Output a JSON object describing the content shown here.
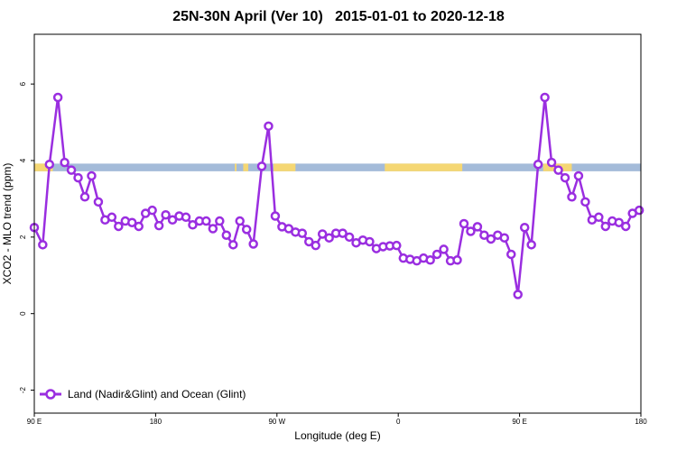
{
  "chart_data": {
    "type": "line",
    "title": "25N-30N April (Ver 10)   2015-01-01 to 2020-12-18",
    "xlabel": "Longitude (deg E)",
    "ylabel": "XCO2 - MLO trend (ppm)",
    "xlim": [
      90,
      450
    ],
    "ylim": [
      -2.6,
      7.3
    ],
    "x_ticks": [
      {
        "value": 90,
        "label": "90 E"
      },
      {
        "value": 162,
        "label": "180"
      },
      {
        "value": 234,
        "label": "90 W"
      },
      {
        "value": 306,
        "label": "0"
      },
      {
        "value": 378,
        "label": "90 E"
      },
      {
        "value": 450,
        "label": "180"
      }
    ],
    "y_ticks": [
      -2,
      0,
      2,
      4,
      6
    ],
    "legend_position": "bottom-left",
    "line_color": "#9a2ee0",
    "land_ocean_strip": {
      "y_range": [
        3.72,
        3.92
      ],
      "ocean_color": "#a4bbd9",
      "land_color": "#f5d774",
      "land_x": [
        [
          90,
          101
        ],
        [
          209,
          210
        ],
        [
          214,
          217
        ],
        [
          232,
          245
        ],
        [
          298,
          344
        ],
        [
          392,
          409
        ]
      ]
    },
    "series": [
      {
        "name": "Land (Nadir&Glint) and Ocean (Glint)",
        "x": [
          90,
          95,
          99,
          104,
          108,
          112,
          116,
          120,
          124,
          128,
          132,
          136,
          140,
          144,
          148,
          152,
          156,
          160,
          164,
          168,
          172,
          176,
          180,
          184,
          188,
          192,
          196,
          200,
          204,
          208,
          212,
          216,
          220,
          225,
          229,
          233,
          237,
          241,
          245,
          249,
          253,
          257,
          261,
          265,
          269,
          273,
          277,
          281,
          285,
          289,
          293,
          297,
          301,
          305,
          309,
          313,
          317,
          321,
          325,
          329,
          333,
          337,
          341,
          345,
          349,
          353,
          357,
          361,
          365,
          369,
          373,
          377,
          381,
          385,
          389,
          393,
          397,
          401,
          405,
          409,
          413,
          417,
          421,
          425,
          429,
          433,
          437,
          441,
          445,
          449
        ],
        "values": [
          2.25,
          1.8,
          3.9,
          5.65,
          3.95,
          3.75,
          3.55,
          3.05,
          3.6,
          2.92,
          2.45,
          2.52,
          2.28,
          2.42,
          2.38,
          2.28,
          2.62,
          2.7,
          2.3,
          2.58,
          2.45,
          2.55,
          2.52,
          2.32,
          2.42,
          2.42,
          2.22,
          2.42,
          2.05,
          1.8,
          2.42,
          2.2,
          1.82,
          3.85,
          4.9,
          2.55,
          2.27,
          2.22,
          2.13,
          2.1,
          1.88,
          1.78,
          2.08,
          1.98,
          2.1,
          2.1,
          2.0,
          1.85,
          1.92,
          1.88,
          1.7,
          1.75,
          1.77,
          1.78,
          1.45,
          1.42,
          1.38,
          1.45,
          1.4,
          1.55,
          1.68,
          1.38,
          1.4,
          2.35,
          2.15,
          2.27,
          2.05,
          1.95,
          2.05,
          1.98,
          1.55,
          0.5,
          2.25,
          1.8,
          3.9,
          5.65,
          3.95,
          3.75,
          3.55,
          3.05,
          3.6,
          2.92,
          2.45,
          2.52,
          2.28,
          2.42,
          2.38,
          2.28,
          2.62,
          2.7
        ]
      }
    ]
  }
}
